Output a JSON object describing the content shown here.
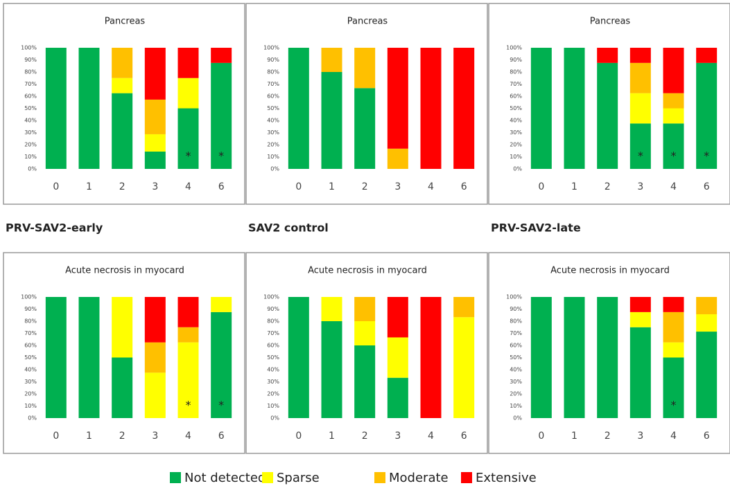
{
  "group_labels": [
    "PRV-SAV2-early",
    "SAV2 control",
    "PRV-SAV2-late"
  ],
  "legend": [
    {
      "name": "Not detected",
      "color": "#00b050"
    },
    {
      "name": "Sparse",
      "color": "#ffff00"
    },
    {
      "name": "Moderate",
      "color": "#ffc000"
    },
    {
      "name": "Extensive",
      "color": "#ff0000"
    }
  ],
  "chart_data": [
    {
      "type": "bar",
      "stacked": true,
      "title": "Pancreas",
      "categories": [
        "0",
        "1",
        "2",
        "3",
        "4",
        "6"
      ],
      "ylim": [
        0,
        100
      ],
      "yticks": [
        {
          "value": 0,
          "label": "0%"
        },
        {
          "value": 10,
          "label": "10%"
        },
        {
          "value": 20,
          "label": "20%"
        },
        {
          "value": 30,
          "label": "30%"
        },
        {
          "value": 40,
          "label": "40%"
        },
        {
          "value": 50,
          "label": "50%"
        },
        {
          "value": 60,
          "label": "60%"
        },
        {
          "value": 70,
          "label": "70%"
        },
        {
          "value": 80,
          "label": "80%"
        },
        {
          "value": 90,
          "label": "90%"
        },
        {
          "value": 100,
          "label": "100%"
        }
      ],
      "series": [
        {
          "values": [
            100,
            100,
            62.5,
            14.3,
            50,
            87.5
          ]
        },
        {
          "values": [
            0,
            0,
            12.5,
            14.3,
            25,
            0
          ]
        },
        {
          "values": [
            0,
            0,
            25,
            28.6,
            0,
            0
          ]
        },
        {
          "values": [
            0,
            0,
            0,
            42.8,
            25,
            12.5
          ]
        }
      ],
      "annotations": [
        {
          "x": "4",
          "text": "*"
        },
        {
          "x": "6",
          "text": "*"
        }
      ]
    },
    {
      "type": "bar",
      "stacked": true,
      "title": "Pancreas",
      "categories": [
        "0",
        "1",
        "2",
        "3",
        "4",
        "6"
      ],
      "ylim": [
        0,
        100
      ],
      "yticks": [
        {
          "value": 0,
          "label": "0%"
        },
        {
          "value": 10,
          "label": "10%"
        },
        {
          "value": 20,
          "label": "20%"
        },
        {
          "value": 30,
          "label": "30%"
        },
        {
          "value": 40,
          "label": "40%"
        },
        {
          "value": 50,
          "label": "50%"
        },
        {
          "value": 60,
          "label": "60%"
        },
        {
          "value": 70,
          "label": "70%"
        },
        {
          "value": 80,
          "label": "80%"
        },
        {
          "value": 90,
          "label": "90%"
        },
        {
          "value": 100,
          "label": "100%"
        }
      ],
      "series": [
        {
          "values": [
            100,
            80,
            66.7,
            0,
            0,
            0
          ]
        },
        {
          "values": [
            0,
            0,
            0,
            0,
            0,
            0
          ]
        },
        {
          "values": [
            0,
            20,
            33.3,
            16.7,
            0,
            0
          ]
        },
        {
          "values": [
            0,
            0,
            0,
            83.3,
            100,
            100
          ]
        }
      ],
      "annotations": []
    },
    {
      "type": "bar",
      "stacked": true,
      "title": "Pancreas",
      "categories": [
        "0",
        "1",
        "2",
        "3",
        "4",
        "6"
      ],
      "ylim": [
        0,
        100
      ],
      "yticks": [
        {
          "value": 0,
          "label": "0%"
        },
        {
          "value": 10,
          "label": "10%"
        },
        {
          "value": 20,
          "label": "20%"
        },
        {
          "value": 30,
          "label": "30%"
        },
        {
          "value": 40,
          "label": "40%"
        },
        {
          "value": 50,
          "label": "50%"
        },
        {
          "value": 60,
          "label": "60%"
        },
        {
          "value": 70,
          "label": "70%"
        },
        {
          "value": 80,
          "label": "80%"
        },
        {
          "value": 90,
          "label": "90%"
        },
        {
          "value": 100,
          "label": "100%"
        }
      ],
      "series": [
        {
          "values": [
            100,
            100,
            87.5,
            37.5,
            37.5,
            87.5
          ]
        },
        {
          "values": [
            0,
            0,
            0,
            25,
            12.5,
            0
          ]
        },
        {
          "values": [
            0,
            0,
            0,
            25,
            12.5,
            0
          ]
        },
        {
          "values": [
            0,
            0,
            12.5,
            12.5,
            37.5,
            12.5
          ]
        }
      ],
      "annotations": [
        {
          "x": "3",
          "text": "*"
        },
        {
          "x": "4",
          "text": "*"
        },
        {
          "x": "6",
          "text": "*"
        }
      ]
    },
    {
      "type": "bar",
      "stacked": true,
      "title": "Acute necrosis in myocard",
      "categories": [
        "0",
        "1",
        "2",
        "3",
        "4",
        "6"
      ],
      "ylim": [
        0,
        100
      ],
      "yticks": [
        {
          "value": 0,
          "label": "0%"
        },
        {
          "value": 10,
          "label": "10%"
        },
        {
          "value": 20,
          "label": "20%"
        },
        {
          "value": 30,
          "label": "30%"
        },
        {
          "value": 40,
          "label": "40%"
        },
        {
          "value": 50,
          "label": "50%"
        },
        {
          "value": 60,
          "label": "60%"
        },
        {
          "value": 70,
          "label": "70%"
        },
        {
          "value": 80,
          "label": "80%"
        },
        {
          "value": 90,
          "label": "90%"
        },
        {
          "value": 100,
          "label": "100%"
        }
      ],
      "series": [
        {
          "values": [
            100,
            100,
            50,
            0,
            0,
            87.5
          ]
        },
        {
          "values": [
            0,
            0,
            50,
            37.5,
            62.5,
            12.5
          ]
        },
        {
          "values": [
            0,
            0,
            0,
            25,
            12.5,
            0
          ]
        },
        {
          "values": [
            0,
            0,
            0,
            37.5,
            25,
            0
          ]
        }
      ],
      "annotations": [
        {
          "x": "4",
          "text": "*"
        },
        {
          "x": "6",
          "text": "*"
        }
      ]
    },
    {
      "type": "bar",
      "stacked": true,
      "title": "Acute necrosis in myocard",
      "categories": [
        "0",
        "1",
        "2",
        "3",
        "4",
        "6"
      ],
      "ylim": [
        0,
        100
      ],
      "yticks": [
        {
          "value": 0,
          "label": "0%"
        },
        {
          "value": 10,
          "label": "10%"
        },
        {
          "value": 20,
          "label": "20%"
        },
        {
          "value": 30,
          "label": "30%"
        },
        {
          "value": 40,
          "label": "40%"
        },
        {
          "value": 50,
          "label": "50%"
        },
        {
          "value": 60,
          "label": "60%"
        },
        {
          "value": 70,
          "label": "70%"
        },
        {
          "value": 80,
          "label": "80%"
        },
        {
          "value": 90,
          "label": "90%"
        },
        {
          "value": 100,
          "label": "100%"
        }
      ],
      "series": [
        {
          "values": [
            100,
            80,
            60,
            33.3,
            0,
            0
          ]
        },
        {
          "values": [
            0,
            20,
            20,
            33.3,
            0,
            83.3
          ]
        },
        {
          "values": [
            0,
            0,
            20,
            0,
            0,
            16.7
          ]
        },
        {
          "values": [
            0,
            0,
            0,
            33.4,
            100,
            0
          ]
        }
      ],
      "annotations": []
    },
    {
      "type": "bar",
      "stacked": true,
      "title": "Acute necrosis in myocard",
      "categories": [
        "0",
        "1",
        "2",
        "3",
        "4",
        "6"
      ],
      "ylim": [
        0,
        100
      ],
      "yticks": [
        {
          "value": 0,
          "label": "0%"
        },
        {
          "value": 10,
          "label": "10%"
        },
        {
          "value": 20,
          "label": "20%"
        },
        {
          "value": 30,
          "label": "30%"
        },
        {
          "value": 40,
          "label": "40%"
        },
        {
          "value": 50,
          "label": "50%"
        },
        {
          "value": 60,
          "label": "60%"
        },
        {
          "value": 70,
          "label": "70%"
        },
        {
          "value": 80,
          "label": "80%"
        },
        {
          "value": 90,
          "label": "90%"
        },
        {
          "value": 100,
          "label": "100%"
        }
      ],
      "series": [
        {
          "values": [
            100,
            100,
            100,
            75,
            50,
            71.4
          ]
        },
        {
          "values": [
            0,
            0,
            0,
            12.5,
            12.5,
            14.3
          ]
        },
        {
          "values": [
            0,
            0,
            0,
            0,
            25,
            14.3
          ]
        },
        {
          "values": [
            0,
            0,
            0,
            12.5,
            12.5,
            0
          ]
        }
      ],
      "annotations": [
        {
          "x": "4",
          "text": "*"
        }
      ]
    }
  ]
}
